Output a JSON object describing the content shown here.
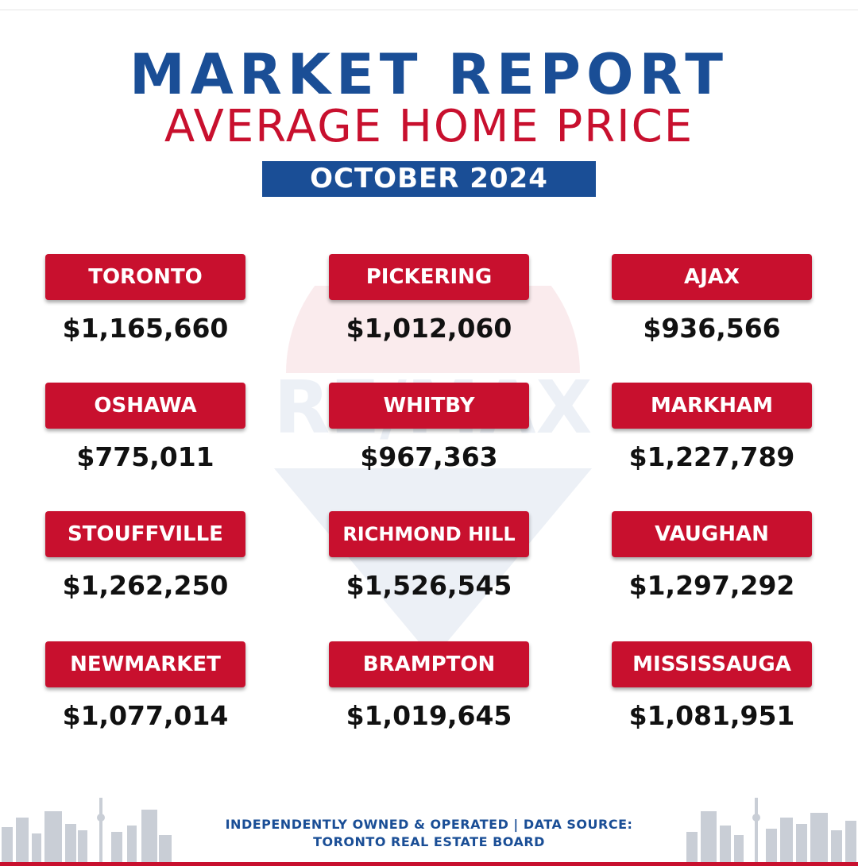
{
  "header": {
    "title": "MARKET REPORT",
    "subtitle": "AVERAGE HOME PRICE",
    "period": "OCTOBER 2024"
  },
  "cities": [
    {
      "name": "TORONTO",
      "price": "$1,165,660"
    },
    {
      "name": "PICKERING",
      "price": "$1,012,060"
    },
    {
      "name": "AJAX",
      "price": "$936,566"
    },
    {
      "name": "OSHAWA",
      "price": "$775,011"
    },
    {
      "name": "WHITBY",
      "price": "$967,363"
    },
    {
      "name": "MARKHAM",
      "price": "$1,227,789"
    },
    {
      "name": "STOUFFVILLE",
      "price": "$1,262,250"
    },
    {
      "name": "RICHMOND HILL",
      "price": "$1,526,545"
    },
    {
      "name": "VAUGHAN",
      "price": "$1,297,292"
    },
    {
      "name": "NEWMARKET",
      "price": "$1,077,014"
    },
    {
      "name": "BRAMPTON",
      "price": "$1,019,645"
    },
    {
      "name": "MISSISSAUGA",
      "price": "$1,081,951"
    }
  ],
  "watermark": {
    "text": "RE/MAX",
    "icon": "balloon-logo-icon"
  },
  "footer": {
    "line1": "INDEPENDENTLY OWNED & OPERATED | DATA SOURCE:",
    "line2": "TORONTO REAL ESTATE BOARD"
  },
  "colors": {
    "blue": "#1a4e96",
    "red": "#c8102e",
    "text": "#111111"
  }
}
